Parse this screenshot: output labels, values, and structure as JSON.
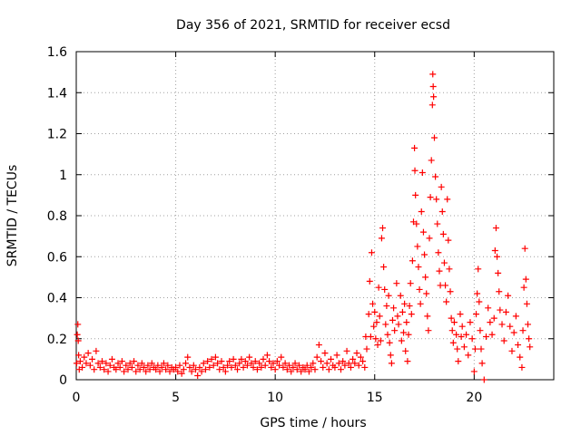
{
  "chart_data": {
    "type": "scatter",
    "title": "Day 356 of 2021, SRMTID for receiver ecsd",
    "xlabel": "GPS time / hours",
    "ylabel": "SRMTID / TECUs",
    "xlim": [
      0,
      24
    ],
    "ylim": [
      0,
      1.6
    ],
    "grid": true,
    "marker": "+",
    "x_ticks": [
      0,
      5,
      10,
      15,
      20
    ],
    "x_tick_labels": [
      "0",
      "5",
      "10",
      "15",
      "20"
    ],
    "y_ticks": [
      0,
      0.2,
      0.4,
      0.6,
      0.8,
      1.0,
      1.2,
      1.4,
      1.6
    ],
    "y_tick_labels": [
      "0",
      "0.2",
      "0.4",
      "0.6",
      "0.8",
      "1",
      "1.2",
      "1.4",
      "1.6"
    ],
    "colors": {
      "series": "#ff0000",
      "axes": "#000000",
      "grid": "#a0a0a0",
      "background": "#ffffff"
    },
    "series": [
      {
        "name": "SRMTID",
        "points": [
          [
            0.02,
            0.08
          ],
          [
            0.05,
            0.22
          ],
          [
            0.08,
            0.27
          ],
          [
            0.1,
            0.19
          ],
          [
            0.12,
            0.12
          ],
          [
            0.15,
            0.05
          ],
          [
            0.2,
            0.09
          ],
          [
            0.3,
            0.06
          ],
          [
            0.4,
            0.11
          ],
          [
            0.5,
            0.08
          ],
          [
            0.6,
            0.13
          ],
          [
            0.7,
            0.07
          ],
          [
            0.8,
            0.1
          ],
          [
            0.9,
            0.05
          ],
          [
            1.0,
            0.14
          ],
          [
            1.1,
            0.08
          ],
          [
            1.2,
            0.06
          ],
          [
            1.3,
            0.09
          ],
          [
            1.4,
            0.05
          ],
          [
            1.5,
            0.08
          ],
          [
            1.6,
            0.04
          ],
          [
            1.7,
            0.07
          ],
          [
            1.8,
            0.1
          ],
          [
            1.9,
            0.06
          ],
          [
            2.0,
            0.05
          ],
          [
            2.1,
            0.08
          ],
          [
            2.2,
            0.06
          ],
          [
            2.3,
            0.09
          ],
          [
            2.4,
            0.04
          ],
          [
            2.5,
            0.07
          ],
          [
            2.6,
            0.05
          ],
          [
            2.7,
            0.08
          ],
          [
            2.8,
            0.06
          ],
          [
            2.9,
            0.09
          ],
          [
            3.0,
            0.04
          ],
          [
            3.1,
            0.07
          ],
          [
            3.2,
            0.05
          ],
          [
            3.3,
            0.08
          ],
          [
            3.4,
            0.06
          ],
          [
            3.5,
            0.04
          ],
          [
            3.6,
            0.07
          ],
          [
            3.7,
            0.05
          ],
          [
            3.8,
            0.08
          ],
          [
            3.9,
            0.06
          ],
          [
            4.0,
            0.05
          ],
          [
            4.1,
            0.07
          ],
          [
            4.2,
            0.04
          ],
          [
            4.3,
            0.06
          ],
          [
            4.4,
            0.08
          ],
          [
            4.5,
            0.05
          ],
          [
            4.6,
            0.07
          ],
          [
            4.7,
            0.04
          ],
          [
            4.8,
            0.06
          ],
          [
            4.9,
            0.05
          ],
          [
            5.0,
            0.06
          ],
          [
            5.1,
            0.04
          ],
          [
            5.2,
            0.07
          ],
          [
            5.3,
            0.03
          ],
          [
            5.4,
            0.05
          ],
          [
            5.5,
            0.08
          ],
          [
            5.6,
            0.11
          ],
          [
            5.7,
            0.06
          ],
          [
            5.8,
            0.04
          ],
          [
            5.9,
            0.07
          ],
          [
            6.0,
            0.05
          ],
          [
            6.1,
            0.02
          ],
          [
            6.2,
            0.06
          ],
          [
            6.3,
            0.04
          ],
          [
            6.4,
            0.08
          ],
          [
            6.5,
            0.05
          ],
          [
            6.6,
            0.09
          ],
          [
            6.7,
            0.06
          ],
          [
            6.8,
            0.1
          ],
          [
            6.9,
            0.07
          ],
          [
            7.0,
            0.11
          ],
          [
            7.1,
            0.08
          ],
          [
            7.2,
            0.05
          ],
          [
            7.3,
            0.09
          ],
          [
            7.4,
            0.06
          ],
          [
            7.5,
            0.04
          ],
          [
            7.6,
            0.07
          ],
          [
            7.7,
            0.09
          ],
          [
            7.8,
            0.06
          ],
          [
            7.9,
            0.1
          ],
          [
            8.0,
            0.07
          ],
          [
            8.1,
            0.05
          ],
          [
            8.2,
            0.08
          ],
          [
            8.3,
            0.1
          ],
          [
            8.4,
            0.06
          ],
          [
            8.5,
            0.09
          ],
          [
            8.6,
            0.07
          ],
          [
            8.7,
            0.11
          ],
          [
            8.8,
            0.08
          ],
          [
            8.9,
            0.06
          ],
          [
            9.0,
            0.09
          ],
          [
            9.1,
            0.05
          ],
          [
            9.2,
            0.08
          ],
          [
            9.3,
            0.06
          ],
          [
            9.4,
            0.1
          ],
          [
            9.5,
            0.07
          ],
          [
            9.6,
            0.12
          ],
          [
            9.7,
            0.09
          ],
          [
            9.8,
            0.06
          ],
          [
            9.9,
            0.08
          ],
          [
            10.0,
            0.05
          ],
          [
            10.1,
            0.09
          ],
          [
            10.2,
            0.07
          ],
          [
            10.3,
            0.11
          ],
          [
            10.4,
            0.06
          ],
          [
            10.5,
            0.08
          ],
          [
            10.6,
            0.05
          ],
          [
            10.7,
            0.07
          ],
          [
            10.8,
            0.04
          ],
          [
            10.9,
            0.06
          ],
          [
            11.0,
            0.08
          ],
          [
            11.1,
            0.05
          ],
          [
            11.2,
            0.07
          ],
          [
            11.3,
            0.04
          ],
          [
            11.4,
            0.06
          ],
          [
            11.5,
            0.05
          ],
          [
            11.6,
            0.07
          ],
          [
            11.7,
            0.04
          ],
          [
            11.8,
            0.06
          ],
          [
            11.9,
            0.08
          ],
          [
            12.0,
            0.05
          ],
          [
            12.1,
            0.11
          ],
          [
            12.2,
            0.17
          ],
          [
            12.3,
            0.09
          ],
          [
            12.4,
            0.06
          ],
          [
            12.5,
            0.13
          ],
          [
            12.6,
            0.08
          ],
          [
            12.7,
            0.05
          ],
          [
            12.8,
            0.1
          ],
          [
            12.9,
            0.07
          ],
          [
            13.0,
            0.06
          ],
          [
            13.1,
            0.12
          ],
          [
            13.2,
            0.08
          ],
          [
            13.3,
            0.05
          ],
          [
            13.4,
            0.09
          ],
          [
            13.5,
            0.07
          ],
          [
            13.6,
            0.14
          ],
          [
            13.7,
            0.08
          ],
          [
            13.8,
            0.06
          ],
          [
            13.9,
            0.1
          ],
          [
            14.0,
            0.08
          ],
          [
            14.1,
            0.13
          ],
          [
            14.2,
            0.07
          ],
          [
            14.3,
            0.11
          ],
          [
            14.4,
            0.09
          ],
          [
            14.5,
            0.06
          ],
          [
            14.55,
            0.21
          ],
          [
            14.6,
            0.15
          ],
          [
            14.7,
            0.32
          ],
          [
            14.75,
            0.48
          ],
          [
            14.8,
            0.21
          ],
          [
            14.85,
            0.62
          ],
          [
            14.9,
            0.37
          ],
          [
            14.95,
            0.26
          ],
          [
            15.0,
            0.33
          ],
          [
            15.05,
            0.2
          ],
          [
            15.1,
            0.28
          ],
          [
            15.15,
            0.17
          ],
          [
            15.2,
            0.45
          ],
          [
            15.25,
            0.31
          ],
          [
            15.3,
            0.19
          ],
          [
            15.35,
            0.69
          ],
          [
            15.4,
            0.74
          ],
          [
            15.45,
            0.55
          ],
          [
            15.5,
            0.44
          ],
          [
            15.55,
            0.27
          ],
          [
            15.6,
            0.36
          ],
          [
            15.65,
            0.22
          ],
          [
            15.7,
            0.41
          ],
          [
            15.75,
            0.18
          ],
          [
            15.8,
            0.12
          ],
          [
            15.85,
            0.08
          ],
          [
            15.9,
            0.29
          ],
          [
            15.95,
            0.35
          ],
          [
            16.0,
            0.24
          ],
          [
            16.1,
            0.47
          ],
          [
            16.15,
            0.31
          ],
          [
            16.2,
            0.27
          ],
          [
            16.3,
            0.41
          ],
          [
            16.35,
            0.19
          ],
          [
            16.4,
            0.33
          ],
          [
            16.45,
            0.23
          ],
          [
            16.5,
            0.37
          ],
          [
            16.55,
            0.14
          ],
          [
            16.6,
            0.28
          ],
          [
            16.65,
            0.09
          ],
          [
            16.7,
            0.22
          ],
          [
            16.75,
            0.36
          ],
          [
            16.8,
            0.47
          ],
          [
            16.85,
            0.32
          ],
          [
            16.9,
            0.58
          ],
          [
            16.95,
            0.77
          ],
          [
            17.0,
            1.13
          ],
          [
            17.02,
            1.02
          ],
          [
            17.05,
            0.9
          ],
          [
            17.1,
            0.76
          ],
          [
            17.15,
            0.65
          ],
          [
            17.2,
            0.55
          ],
          [
            17.25,
            0.44
          ],
          [
            17.3,
            0.37
          ],
          [
            17.35,
            0.82
          ],
          [
            17.4,
            1.01
          ],
          [
            17.45,
            0.72
          ],
          [
            17.5,
            0.61
          ],
          [
            17.55,
            0.5
          ],
          [
            17.6,
            0.42
          ],
          [
            17.65,
            0.31
          ],
          [
            17.7,
            0.24
          ],
          [
            17.75,
            0.69
          ],
          [
            17.8,
            0.89
          ],
          [
            17.85,
            1.07
          ],
          [
            17.9,
            1.34
          ],
          [
            17.92,
            1.49
          ],
          [
            17.94,
            1.43
          ],
          [
            17.96,
            1.38
          ],
          [
            18.0,
            1.18
          ],
          [
            18.05,
            0.99
          ],
          [
            18.1,
            0.88
          ],
          [
            18.15,
            0.76
          ],
          [
            18.2,
            0.62
          ],
          [
            18.25,
            0.53
          ],
          [
            18.3,
            0.46
          ],
          [
            18.35,
            0.94
          ],
          [
            18.4,
            0.82
          ],
          [
            18.45,
            0.71
          ],
          [
            18.5,
            0.57
          ],
          [
            18.55,
            0.46
          ],
          [
            18.6,
            0.38
          ],
          [
            18.65,
            0.88
          ],
          [
            18.7,
            0.68
          ],
          [
            18.75,
            0.54
          ],
          [
            18.8,
            0.43
          ],
          [
            18.85,
            0.3
          ],
          [
            18.9,
            0.24
          ],
          [
            18.95,
            0.18
          ],
          [
            19.0,
            0.28
          ],
          [
            19.1,
            0.22
          ],
          [
            19.15,
            0.15
          ],
          [
            19.2,
            0.09
          ],
          [
            19.3,
            0.32
          ],
          [
            19.35,
            0.21
          ],
          [
            19.4,
            0.26
          ],
          [
            19.5,
            0.16
          ],
          [
            19.6,
            0.22
          ],
          [
            19.7,
            0.12
          ],
          [
            19.8,
            0.28
          ],
          [
            19.9,
            0.2
          ],
          [
            20.0,
            0.04
          ],
          [
            20.05,
            0.15
          ],
          [
            20.1,
            0.32
          ],
          [
            20.15,
            0.42
          ],
          [
            20.2,
            0.54
          ],
          [
            20.25,
            0.38
          ],
          [
            20.3,
            0.24
          ],
          [
            20.35,
            0.15
          ],
          [
            20.4,
            0.08
          ],
          [
            20.5,
            0.0
          ],
          [
            20.6,
            0.21
          ],
          [
            20.7,
            0.35
          ],
          [
            20.8,
            0.28
          ],
          [
            20.9,
            0.22
          ],
          [
            21.0,
            0.3
          ],
          [
            21.05,
            0.63
          ],
          [
            21.1,
            0.74
          ],
          [
            21.15,
            0.6
          ],
          [
            21.2,
            0.52
          ],
          [
            21.25,
            0.43
          ],
          [
            21.3,
            0.34
          ],
          [
            21.4,
            0.27
          ],
          [
            21.5,
            0.19
          ],
          [
            21.6,
            0.33
          ],
          [
            21.7,
            0.41
          ],
          [
            21.8,
            0.26
          ],
          [
            21.9,
            0.14
          ],
          [
            22.0,
            0.23
          ],
          [
            22.1,
            0.31
          ],
          [
            22.2,
            0.17
          ],
          [
            22.3,
            0.11
          ],
          [
            22.4,
            0.06
          ],
          [
            22.45,
            0.24
          ],
          [
            22.5,
            0.45
          ],
          [
            22.55,
            0.64
          ],
          [
            22.6,
            0.49
          ],
          [
            22.65,
            0.37
          ],
          [
            22.7,
            0.27
          ],
          [
            22.75,
            0.2
          ],
          [
            22.8,
            0.16
          ]
        ]
      }
    ]
  }
}
